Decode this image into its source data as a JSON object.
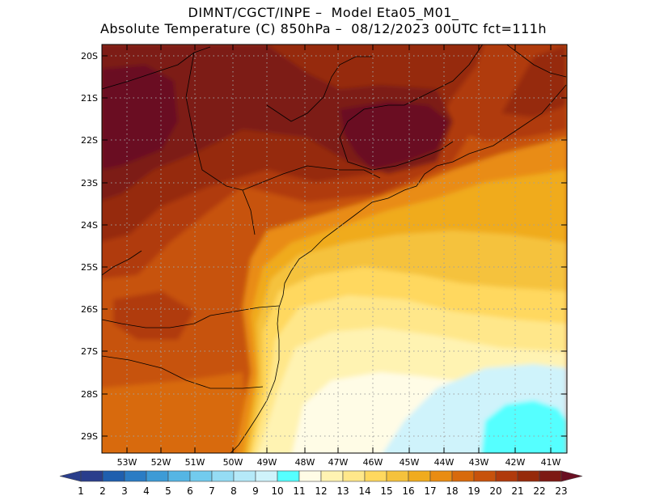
{
  "title": {
    "line1": "DIMNT/CGCT/INPE –  Model Eta05_M01_",
    "line2": "Absolute Temperature (C) 850hPa –  08/12/2023 00UTC fct=111h"
  },
  "map": {
    "lat_labels": [
      "20S",
      "21S",
      "22S",
      "23S",
      "24S",
      "25S",
      "26S",
      "27S",
      "28S",
      "29S"
    ],
    "lon_labels": [
      "53W",
      "52W",
      "51W",
      "50W",
      "49W",
      "48W",
      "47W",
      "46W",
      "45W",
      "44W",
      "43W",
      "42W",
      "41W"
    ]
  },
  "colorbar": {
    "labels": [
      "1",
      "2",
      "3",
      "4",
      "5",
      "6",
      "7",
      "8",
      "9",
      "10",
      "11",
      "12",
      "13",
      "14",
      "15",
      "16",
      "17",
      "18",
      "19",
      "20",
      "21",
      "22",
      "23"
    ],
    "colors": [
      "#2a3e8c",
      "#1f5fae",
      "#2a7cc4",
      "#3d9bd6",
      "#55b5e4",
      "#72cbee",
      "#95dcf4",
      "#b5e9f8",
      "#cff3fb",
      "#55ffff",
      "#fffce6",
      "#fff3b2",
      "#ffe78a",
      "#ffd85e",
      "#f5c23c",
      "#f0ab1e",
      "#e98c12",
      "#d86a0c",
      "#c7520c",
      "#b03a0c",
      "#962a0a",
      "#7d1a14",
      "#6a0f22"
    ]
  }
}
